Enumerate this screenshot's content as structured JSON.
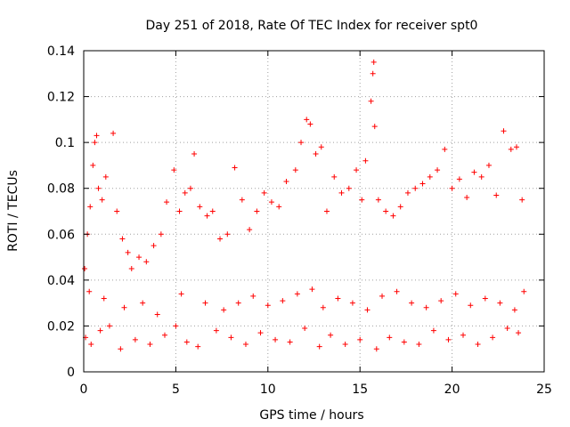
{
  "chart_data": {
    "type": "scatter",
    "title": "Day 251 of 2018, Rate Of TEC Index for receiver spt0",
    "xlabel": "GPS time / hours",
    "ylabel": "ROTI / TECUs",
    "xlim": [
      0,
      25
    ],
    "ylim": [
      0,
      0.14
    ],
    "x_ticks": [
      0,
      5,
      10,
      15,
      20,
      25
    ],
    "x_tick_labels": [
      "0",
      "5",
      "10",
      "15",
      "20",
      "25"
    ],
    "y_ticks": [
      0,
      0.02,
      0.04,
      0.06,
      0.08,
      0.1,
      0.12,
      0.14
    ],
    "y_tick_labels": [
      "0",
      "0.02",
      "0.04",
      "0.06",
      "0.08",
      "0.1",
      "0.12",
      "0.14"
    ],
    "grid": true,
    "marker": "+",
    "color": "#ff0000",
    "series": [
      {
        "name": "ROTI",
        "x": [
          0.05,
          0.2,
          0.35,
          0.5,
          0.6,
          0.7,
          0.8,
          1.0,
          1.2,
          1.6,
          1.8,
          2.1,
          2.4,
          2.6,
          3.0,
          3.4,
          3.8,
          4.2,
          4.5,
          4.9,
          5.2,
          5.5,
          5.8,
          6.0,
          6.3,
          6.7,
          7.0,
          7.4,
          7.8,
          8.2,
          8.6,
          9.0,
          9.4,
          9.8,
          10.2,
          10.6,
          11.0,
          11.5,
          11.8,
          12.1,
          12.3,
          12.6,
          12.9,
          13.2,
          13.6,
          14.0,
          14.4,
          14.8,
          15.1,
          15.3,
          15.6,
          15.7,
          15.75,
          15.8,
          16.0,
          16.4,
          16.8,
          17.2,
          17.6,
          18.0,
          18.4,
          18.8,
          19.2,
          19.6,
          20.0,
          20.4,
          20.8,
          21.2,
          21.6,
          22.0,
          22.4,
          22.8,
          23.2,
          23.5,
          23.8,
          0.1,
          0.4,
          0.9,
          1.4,
          2.0,
          2.8,
          3.6,
          4.4,
          5.0,
          5.6,
          6.2,
          7.2,
          8.0,
          8.8,
          9.6,
          10.4,
          11.2,
          12.0,
          12.8,
          13.4,
          14.2,
          15.0,
          15.9,
          16.6,
          17.4,
          18.2,
          19.0,
          19.8,
          20.6,
          21.4,
          22.2,
          23.0,
          23.6,
          0.3,
          1.1,
          2.2,
          3.2,
          4.0,
          5.3,
          6.6,
          7.6,
          8.4,
          9.2,
          10.0,
          10.8,
          11.6,
          12.4,
          13.0,
          13.8,
          14.6,
          15.4,
          16.2,
          17.0,
          17.8,
          18.6,
          19.4,
          20.2,
          21.0,
          21.8,
          22.6,
          23.4,
          23.9
        ],
        "y": [
          0.045,
          0.06,
          0.072,
          0.09,
          0.1,
          0.103,
          0.08,
          0.075,
          0.085,
          0.104,
          0.07,
          0.058,
          0.052,
          0.045,
          0.05,
          0.048,
          0.055,
          0.06,
          0.074,
          0.088,
          0.07,
          0.078,
          0.08,
          0.095,
          0.072,
          0.068,
          0.07,
          0.058,
          0.06,
          0.089,
          0.075,
          0.062,
          0.07,
          0.078,
          0.074,
          0.072,
          0.083,
          0.088,
          0.1,
          0.11,
          0.108,
          0.095,
          0.098,
          0.07,
          0.085,
          0.078,
          0.08,
          0.088,
          0.075,
          0.092,
          0.118,
          0.13,
          0.135,
          0.107,
          0.075,
          0.07,
          0.068,
          0.072,
          0.078,
          0.08,
          0.082,
          0.085,
          0.088,
          0.097,
          0.08,
          0.084,
          0.076,
          0.087,
          0.085,
          0.09,
          0.077,
          0.105,
          0.097,
          0.098,
          0.075,
          0.015,
          0.012,
          0.018,
          0.02,
          0.01,
          0.014,
          0.012,
          0.016,
          0.02,
          0.013,
          0.011,
          0.018,
          0.015,
          0.012,
          0.017,
          0.014,
          0.013,
          0.019,
          0.011,
          0.016,
          0.012,
          0.014,
          0.01,
          0.015,
          0.013,
          0.012,
          0.018,
          0.014,
          0.016,
          0.012,
          0.015,
          0.019,
          0.017,
          0.035,
          0.032,
          0.028,
          0.03,
          0.025,
          0.034,
          0.03,
          0.027,
          0.03,
          0.033,
          0.029,
          0.031,
          0.034,
          0.036,
          0.028,
          0.032,
          0.03,
          0.027,
          0.033,
          0.035,
          0.03,
          0.028,
          0.031,
          0.034,
          0.029,
          0.032,
          0.03,
          0.027,
          0.035
        ]
      }
    ]
  }
}
